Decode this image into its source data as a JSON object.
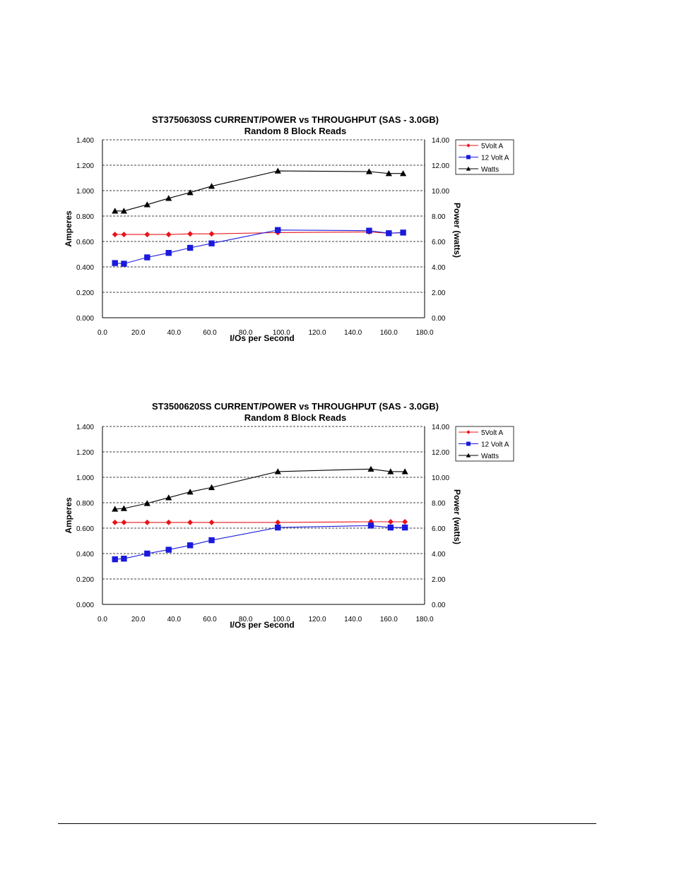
{
  "charts": [
    {
      "title": "ST3750630SS CURRENT/POWER vs THROUGHPUT (SAS - 3.0GB)",
      "subtitle": "Random 8 Block Reads",
      "xlabel": "I/Os per Second",
      "ylabel_left": "Amperes",
      "ylabel_right": "Power (watts)"
    },
    {
      "title": "ST3500620SS CURRENT/POWER vs THROUGHPUT (SAS - 3.0GB)",
      "subtitle": "Random 8 Block Reads",
      "xlabel": "I/Os per Second",
      "ylabel_left": "Amperes",
      "ylabel_right": "Power (watts)"
    }
  ],
  "chart_data": [
    {
      "type": "line",
      "title": "ST3750630SS CURRENT/POWER vs THROUGHPUT (SAS - 3.0GB)",
      "subtitle": "Random 8 Block Reads",
      "xlabel": "I/Os per Second",
      "ylabel": "Amperes",
      "ylabel_right": "Power (watts)",
      "xlim": [
        0,
        180
      ],
      "ylim": [
        0,
        1.4
      ],
      "ylim_right": [
        0,
        14
      ],
      "x_ticks": [
        "0.0",
        "20.0",
        "40.0",
        "60.0",
        "80.0",
        "100.0",
        "120.0",
        "140.0",
        "160.0",
        "180.0"
      ],
      "y_ticks": [
        "0.000",
        "0.200",
        "0.400",
        "0.600",
        "0.800",
        "1.000",
        "1.200",
        "1.400"
      ],
      "y_ticks_right": [
        "0.00",
        "2.00",
        "4.00",
        "6.00",
        "8.00",
        "10.00",
        "12.00",
        "14.00"
      ],
      "grid": "horizontal dashed",
      "legend_position": "top-right",
      "series": [
        {
          "name": "5Volt A",
          "axis": "left",
          "color": "#e8141b",
          "marker": "diamond",
          "x": [
            7,
            12,
            25,
            37,
            49,
            61,
            98,
            149,
            160,
            168
          ],
          "y": [
            0.655,
            0.655,
            0.655,
            0.655,
            0.66,
            0.66,
            0.67,
            0.675,
            0.665,
            0.67
          ]
        },
        {
          "name": "12 Volt A",
          "axis": "left",
          "color": "#1a1adc",
          "marker": "square",
          "x": [
            7,
            12,
            25,
            37,
            49,
            61,
            98,
            149,
            160,
            168
          ],
          "y": [
            0.43,
            0.425,
            0.475,
            0.51,
            0.55,
            0.585,
            0.69,
            0.685,
            0.665,
            0.67
          ]
        },
        {
          "name": "Watts",
          "axis": "right",
          "color": "#000000",
          "marker": "triangle",
          "x": [
            7,
            12,
            25,
            37,
            49,
            61,
            98,
            149,
            160,
            168
          ],
          "y": [
            8.4,
            8.4,
            8.9,
            9.4,
            9.85,
            10.35,
            11.55,
            11.5,
            11.35,
            11.35
          ]
        }
      ]
    },
    {
      "type": "line",
      "title": "ST3500620SS CURRENT/POWER vs THROUGHPUT (SAS - 3.0GB)",
      "subtitle": "Random 8 Block Reads",
      "xlabel": "I/Os per Second",
      "ylabel": "Amperes",
      "ylabel_right": "Power (watts)",
      "xlim": [
        0,
        180
      ],
      "ylim": [
        0,
        1.4
      ],
      "ylim_right": [
        0,
        14
      ],
      "x_ticks": [
        "0.0",
        "20.0",
        "40.0",
        "60.0",
        "80.0",
        "100.0",
        "120.0",
        "140.0",
        "160.0",
        "180.0"
      ],
      "y_ticks": [
        "0.000",
        "0.200",
        "0.400",
        "0.600",
        "0.800",
        "1.000",
        "1.200",
        "1.400"
      ],
      "y_ticks_right": [
        "0.00",
        "2.00",
        "4.00",
        "6.00",
        "8.00",
        "10.00",
        "12.00",
        "14.00"
      ],
      "grid": "horizontal dashed",
      "legend_position": "top-right",
      "series": [
        {
          "name": "5Volt A",
          "axis": "left",
          "color": "#e8141b",
          "marker": "diamond",
          "x": [
            7,
            12,
            25,
            37,
            49,
            61,
            98,
            150,
            161,
            169
          ],
          "y": [
            0.645,
            0.645,
            0.645,
            0.645,
            0.645,
            0.645,
            0.645,
            0.65,
            0.65,
            0.65
          ]
        },
        {
          "name": "12 Volt A",
          "axis": "left",
          "color": "#1a1adc",
          "marker": "square",
          "x": [
            7,
            12,
            25,
            37,
            49,
            61,
            98,
            150,
            161,
            169
          ],
          "y": [
            0.355,
            0.36,
            0.4,
            0.43,
            0.465,
            0.505,
            0.605,
            0.62,
            0.605,
            0.605
          ]
        },
        {
          "name": "Watts",
          "axis": "right",
          "color": "#000000",
          "marker": "triangle",
          "x": [
            7,
            12,
            25,
            37,
            49,
            61,
            98,
            150,
            161,
            169
          ],
          "y": [
            7.5,
            7.55,
            7.95,
            8.4,
            8.85,
            9.2,
            10.45,
            10.65,
            10.45,
            10.45
          ]
        }
      ]
    }
  ]
}
